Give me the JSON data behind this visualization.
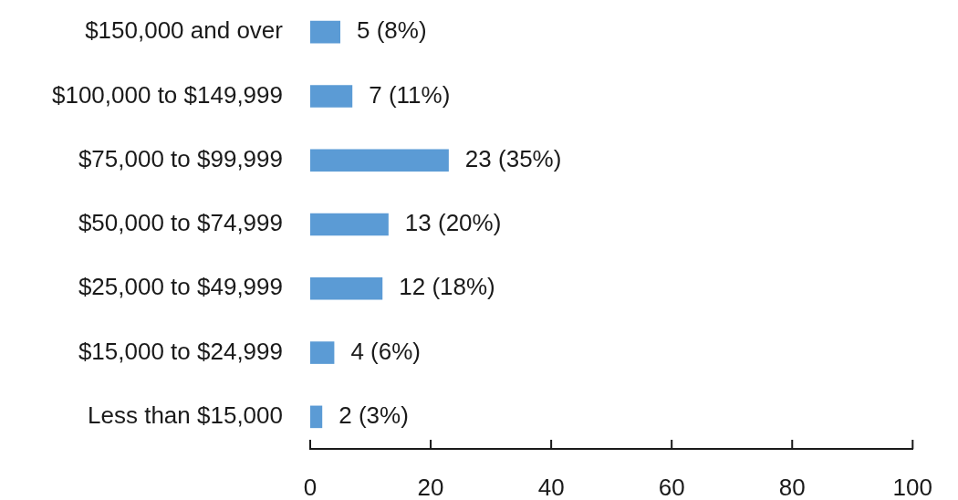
{
  "chart_data": {
    "type": "bar",
    "orientation": "horizontal",
    "categories": [
      "$150,000 and over",
      "$100,000 to $149,999",
      "$75,000 to $99,999",
      "$50,000 to $74,999",
      "$25,000 to $49,999",
      "$15,000 to $24,999",
      "Less than $15,000"
    ],
    "values": [
      5,
      7,
      23,
      13,
      12,
      4,
      2
    ],
    "value_labels": [
      "5 (8%)",
      "7 (11%)",
      "23 (35%)",
      "13 (20%)",
      "12 (18%)",
      "4 (6%)",
      "2 (3%)"
    ],
    "color": "#5b9bd5",
    "xlim": [
      0,
      100
    ],
    "xticks": [
      0,
      20,
      40,
      60,
      80,
      100
    ]
  }
}
